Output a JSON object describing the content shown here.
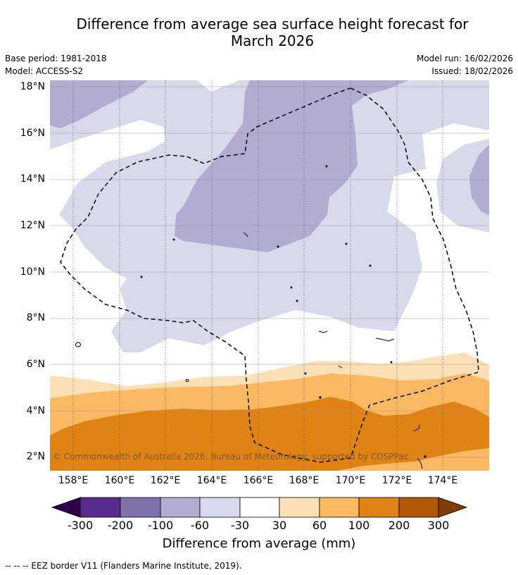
{
  "title_line1": "Difference from average sea surface height forecast for",
  "title_line2": "March 2026",
  "meta": {
    "base_period": "Base period: 1981-2018",
    "model": "Model: ACCESS-S2",
    "model_run": "Model run: 16/02/2026",
    "issued": "Issued: 18/02/2026"
  },
  "map": {
    "lat_labels": [
      "18°N",
      "16°N",
      "14°N",
      "12°N",
      "10°N",
      "8°N",
      "6°N",
      "4°N",
      "2°N"
    ],
    "lon_labels": [
      "158°E",
      "160°E",
      "162°E",
      "164°E",
      "166°E",
      "168°E",
      "170°E",
      "172°E",
      "174°E"
    ],
    "copyright": "© Commonwealth of Australia 2026, Bureau of Meteorology, supported by COSPPac"
  },
  "colorbar": {
    "ticks": [
      "-300",
      "-200",
      "-100",
      "-60",
      "-30",
      "30",
      "60",
      "100",
      "200",
      "300"
    ],
    "colors": [
      "#2d004b",
      "#5b2a8e",
      "#8073ac",
      "#b2abd2",
      "#d8daeb",
      "#ffffff",
      "#fee0b6",
      "#fdb863",
      "#e08214",
      "#b35806",
      "#7f3b08"
    ],
    "title": "Difference from average (mm)"
  },
  "footer": "-- -- -- EEZ border V11 (Flanders Marine Institute, 2019)."
}
